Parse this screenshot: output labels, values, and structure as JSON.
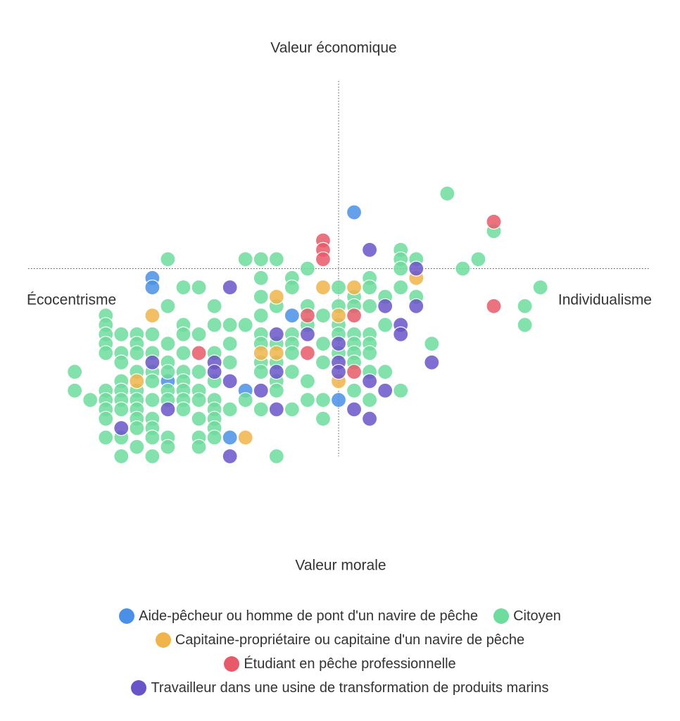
{
  "chart_data": {
    "type": "scatter",
    "xlabel": "Valeur morale",
    "ylabel": "Valeur économique",
    "left_label": "Écocentrisme",
    "right_label": "Individualisme",
    "xlim": [
      -20,
      20
    ],
    "ylim": [
      -20,
      20
    ],
    "series": [
      {
        "name": "Aide-pêcheur ou homme de pont d'un navire de pêche",
        "color": "#4a90e8",
        "x": [
          1,
          -12,
          -12,
          -3,
          -6,
          0,
          -7,
          -11
        ],
        "y": [
          6,
          -1,
          -2,
          -5,
          -13,
          -14,
          -18,
          -12
        ]
      },
      {
        "name": "Citoyen",
        "color": "#6ddc9c",
        "x": [
          7,
          10,
          9,
          8,
          13,
          12,
          12,
          6,
          4,
          4,
          4,
          5,
          4,
          5,
          3,
          3,
          4,
          3,
          2,
          2,
          2,
          2,
          2,
          2,
          2,
          2,
          1,
          1,
          1,
          1,
          1,
          1,
          1,
          0,
          0,
          0,
          0,
          0,
          -1,
          -1,
          -1,
          -1,
          -1,
          -2,
          -2,
          -2,
          -2,
          -2,
          -3,
          -3,
          -3,
          -3,
          -3,
          -3,
          -3,
          -4,
          -4,
          -4,
          -4,
          -4,
          -4,
          -4,
          -5,
          -5,
          -5,
          -5,
          -5,
          -5,
          -5,
          -5,
          -5,
          -6,
          -6,
          -6,
          -7,
          -7,
          -7,
          -7,
          -8,
          -8,
          -8,
          -8,
          -8,
          -8,
          -8,
          -8,
          -8,
          -9,
          -9,
          -9,
          -9,
          -9,
          -9,
          -9,
          -9,
          -10,
          -10,
          -10,
          -10,
          -10,
          -10,
          -10,
          -10,
          -10,
          -11,
          -11,
          -11,
          -11,
          -11,
          -11,
          -11,
          -11,
          -11,
          -12,
          -12,
          -12,
          -12,
          -12,
          -12,
          -12,
          -12,
          -12,
          -13,
          -13,
          -13,
          -13,
          -13,
          -13,
          -13,
          -13,
          -13,
          -13,
          -14,
          -14,
          -14,
          -14,
          -14,
          -14,
          -14,
          -14,
          -14,
          -15,
          -15,
          -15,
          -15,
          -15,
          -15,
          -15,
          -15,
          -15,
          -15,
          -16,
          -17,
          -17
        ],
        "y": [
          8,
          4,
          1,
          0,
          -2,
          -4,
          -6,
          -8,
          2,
          1,
          0,
          1,
          -2,
          -3,
          -3,
          -6,
          -13,
          -11,
          -1,
          -2,
          -4,
          -7,
          -8,
          -9,
          -11,
          -14,
          -3,
          -4,
          -7,
          -8,
          -9,
          -10,
          -13,
          -2,
          -4,
          -6,
          -7,
          -9,
          -5,
          -8,
          -10,
          -14,
          -16,
          0,
          -4,
          -6,
          -12,
          -14,
          -1,
          -2,
          -7,
          -8,
          -9,
          -11,
          -15,
          1,
          -4,
          -8,
          -10,
          -12,
          -13,
          -20,
          1,
          -1,
          -3,
          -5,
          -7,
          -8,
          -10,
          -11,
          -15,
          1,
          -6,
          -14,
          -6,
          -8,
          -10,
          -15,
          -4,
          -6,
          -9,
          -12,
          -14,
          -15,
          -16,
          -17,
          -18,
          -2,
          -7,
          -11,
          -13,
          -14,
          -16,
          -18,
          -19,
          -2,
          -6,
          -7,
          -9,
          -11,
          -12,
          -13,
          -14,
          -15,
          1,
          -4,
          -8,
          -10,
          -11,
          -13,
          -14,
          -18,
          -19,
          -7,
          -9,
          -11,
          -12,
          -14,
          -16,
          -17,
          -18,
          -20,
          -7,
          -8,
          -9,
          -11,
          -13,
          -14,
          -15,
          -16,
          -17,
          -19,
          -7,
          -9,
          -10,
          -12,
          -13,
          -14,
          -15,
          -18,
          -20,
          -5,
          -6,
          -7,
          -8,
          -9,
          -13,
          -14,
          -15,
          -16,
          -18,
          -14,
          -11,
          -13
        ]
      },
      {
        "name": "Capitaine-propriétaire ou capitaine d'un navire de pêche",
        "color": "#f0b44a",
        "x": [
          -1,
          1,
          -4,
          5,
          -12,
          0,
          -5,
          -4,
          -13,
          0,
          -6
        ],
        "y": [
          -2,
          -2,
          -3,
          -1,
          -5,
          -5,
          -9,
          -9,
          -12,
          -12,
          -18
        ]
      },
      {
        "name": "Étudiant en pêche professionnelle",
        "color": "#e85a6a",
        "x": [
          -1,
          -1,
          -1,
          10,
          10,
          -2,
          1,
          -9,
          -2,
          1
        ],
        "y": [
          3,
          2,
          1,
          5,
          -4,
          -5,
          -5,
          -9,
          -9,
          -11
        ]
      },
      {
        "name": "Travailleur dans une usine de transformation de produits marins",
        "color": "#6a55c8",
        "x": [
          2,
          5,
          -7,
          3,
          5,
          4,
          4,
          -4,
          -2,
          0,
          6,
          -12,
          -8,
          -8,
          -4,
          0,
          0,
          -7,
          2,
          3,
          -5,
          -11,
          -4,
          1,
          2,
          -14,
          -7
        ],
        "y": [
          2,
          0,
          -2,
          -4,
          -4,
          -6,
          -7,
          -7,
          -7,
          -8,
          -10,
          -10,
          -10,
          -11,
          -11,
          -10,
          -11,
          -12,
          -12,
          -13,
          -13,
          -15,
          -15,
          -15,
          -16,
          -17,
          -20
        ]
      }
    ]
  }
}
